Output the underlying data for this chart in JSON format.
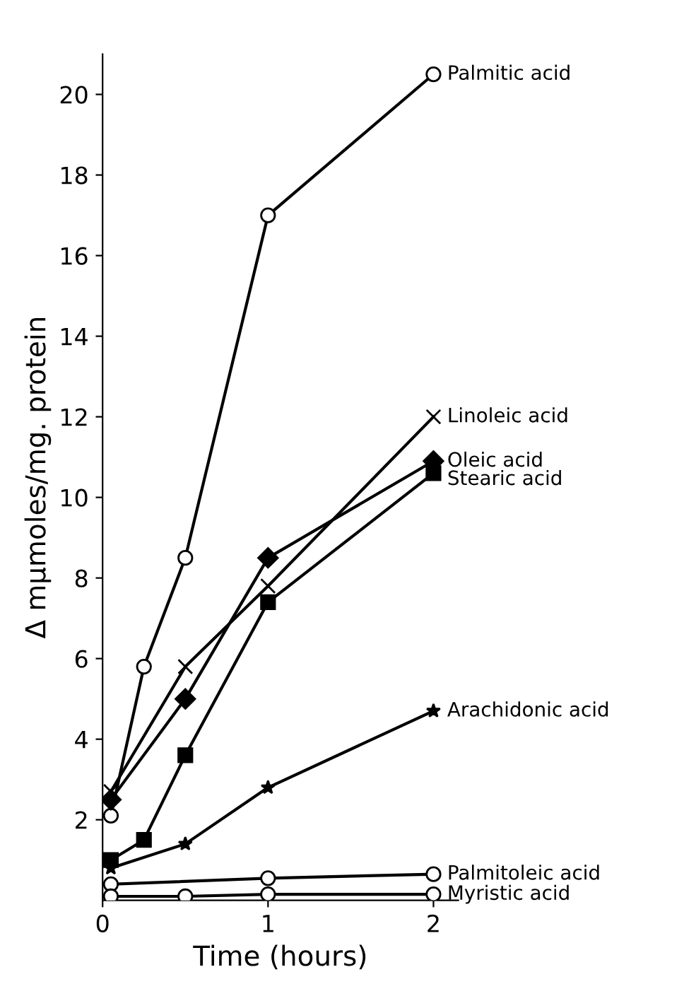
{
  "chart_data": {
    "type": "line",
    "xlabel": "Time (hours)",
    "ylabel": "Δ mμmoles/mg. protein",
    "xlim": [
      0,
      2.15
    ],
    "ylim": [
      0,
      21
    ],
    "xticks": [
      0,
      1,
      2
    ],
    "yticks": [
      2,
      4,
      6,
      8,
      10,
      12,
      14,
      16,
      18,
      20
    ],
    "grid": false,
    "legend": false,
    "series": [
      {
        "name": "Palmitic acid",
        "color": "#000000",
        "marker": "circle",
        "x": [
          0.05,
          0.25,
          0.5,
          1,
          2
        ],
        "values": [
          2.1,
          5.8,
          8.5,
          17,
          20.5
        ]
      },
      {
        "name": "Linoleic acid",
        "color": "#000000",
        "marker": "cross",
        "x": [
          0.05,
          0.5,
          1,
          2
        ],
        "values": [
          2.7,
          5.8,
          7.8,
          12
        ]
      },
      {
        "name": "Oleic acid",
        "color": "#000000",
        "marker": "diamond",
        "x": [
          0.05,
          0.5,
          1,
          2
        ],
        "values": [
          2.5,
          5.0,
          8.5,
          10.9
        ]
      },
      {
        "name": "Stearic acid",
        "color": "#000000",
        "marker": "square",
        "x": [
          0.05,
          0.25,
          0.5,
          1,
          2
        ],
        "values": [
          1.0,
          1.5,
          3.6,
          7.4,
          10.6
        ]
      },
      {
        "name": "Arachidonic acid",
        "color": "#000000",
        "marker": "star",
        "x": [
          0.05,
          0.5,
          1,
          2
        ],
        "values": [
          0.8,
          1.4,
          2.8,
          4.7
        ]
      },
      {
        "name": "Palmitoleic acid",
        "color": "#000000",
        "marker": "circle",
        "x": [
          0.05,
          1,
          2
        ],
        "values": [
          0.4,
          0.55,
          0.65
        ]
      },
      {
        "name": "Myristic acid",
        "color": "#000000",
        "marker": "circle",
        "x": [
          0.05,
          0.5,
          1,
          2
        ],
        "values": [
          0.1,
          0.1,
          0.15,
          0.15
        ]
      }
    ]
  }
}
